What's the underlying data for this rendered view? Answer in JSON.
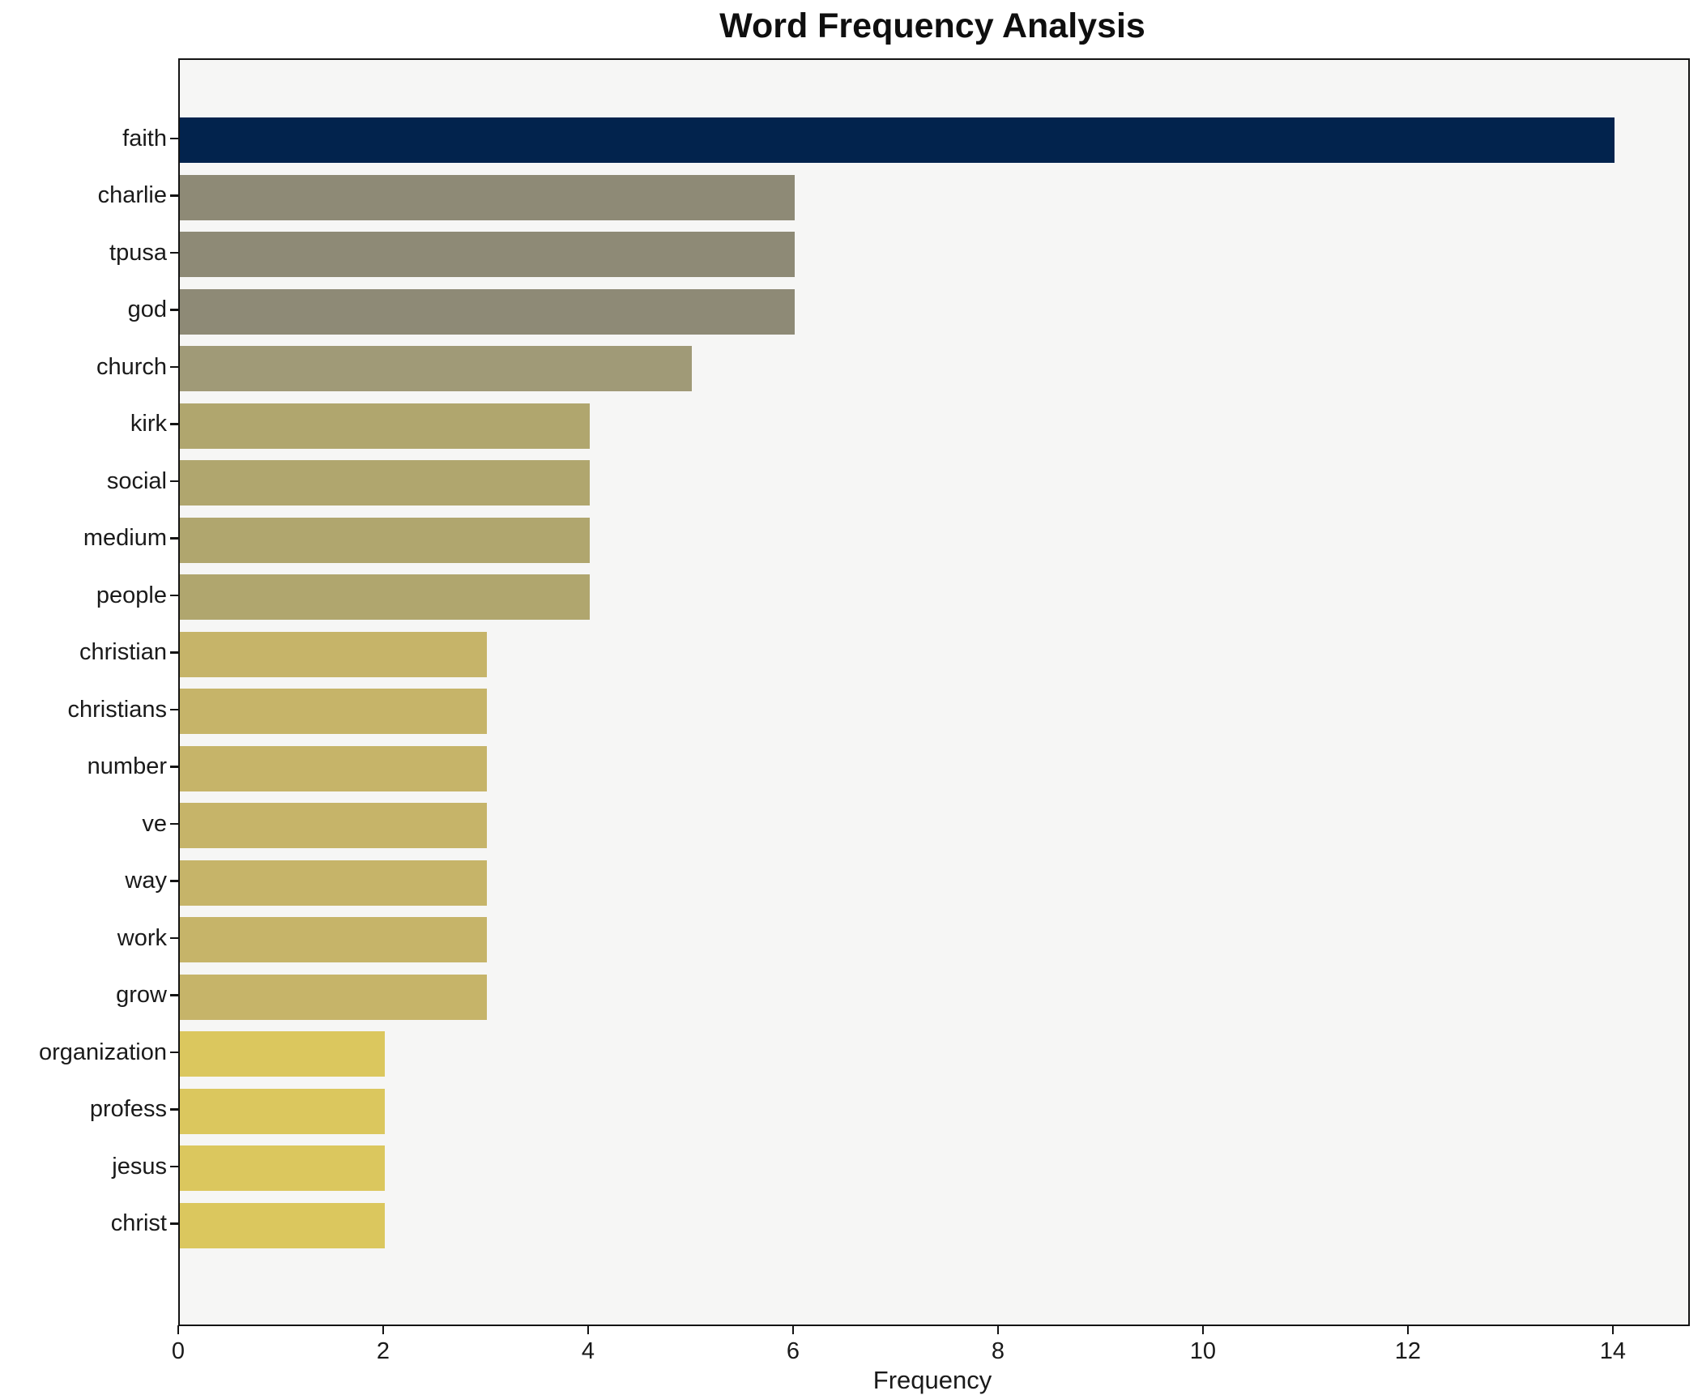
{
  "title": "Word Frequency Analysis",
  "x_axis_label": "Frequency",
  "chart_data": {
    "type": "bar",
    "orientation": "horizontal",
    "title": "Word Frequency Analysis",
    "xlabel": "Frequency",
    "ylabel": "",
    "categories": [
      "faith",
      "charlie",
      "tpusa",
      "god",
      "church",
      "kirk",
      "social",
      "medium",
      "people",
      "christian",
      "christians",
      "number",
      "ve",
      "way",
      "work",
      "grow",
      "organization",
      "profess",
      "jesus",
      "christ"
    ],
    "values": [
      14,
      6,
      6,
      6,
      5,
      4,
      4,
      4,
      4,
      3,
      3,
      3,
      3,
      3,
      3,
      3,
      2,
      2,
      2,
      2
    ],
    "bar_colors": [
      "#02234d",
      "#8e8a76",
      "#8e8a76",
      "#8e8a76",
      "#a09a77",
      "#b0a66e",
      "#b0a66e",
      "#b0a66e",
      "#b0a66e",
      "#c6b469",
      "#c6b469",
      "#c6b469",
      "#c6b469",
      "#c6b469",
      "#c6b469",
      "#c6b469",
      "#dbc75e",
      "#dbc75e",
      "#dbc75e",
      "#dbc75e"
    ],
    "xticks": [
      0,
      2,
      4,
      6,
      8,
      10,
      12,
      14
    ],
    "xlim": [
      0,
      14.72
    ],
    "grid": false,
    "legend_position": "none",
    "plot_background": "#f6f6f5",
    "figure_background": "#ffffff",
    "spine_color": "#141414"
  }
}
